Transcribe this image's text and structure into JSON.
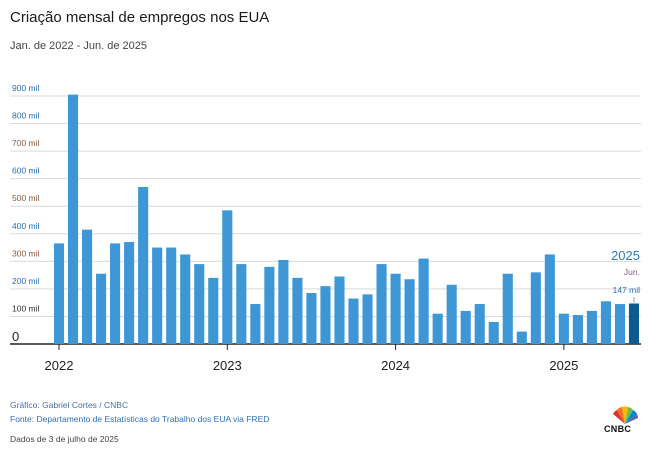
{
  "title": "Criação mensal de empregos nos EUA",
  "subtitle": "Jan. de 2022 - Jun. de 2025",
  "footer": {
    "credit": "Gráfico: Gabriel Cortes / CNBC",
    "source": "Fonte: Departamento de Estatísticas do Trabalho dos EUA via FRED",
    "date": "Dados de 3 de julho de 2025"
  },
  "logo": {
    "text": "CNBC",
    "icon": "cnbc-peacock-icon"
  },
  "colors": {
    "bar": "#3d97d4",
    "highlight": "#0d5a8c",
    "year_label": "#2a7abf",
    "grid": "#d9d9d9",
    "axis": "#222222"
  },
  "chart_data": {
    "type": "bar",
    "ylim": [
      0,
      900
    ],
    "yticks": [
      {
        "value": 900,
        "label": "900 mil",
        "color": "#2a6fb3"
      },
      {
        "value": 800,
        "label": "800 mil",
        "color": "#2a6fb3"
      },
      {
        "value": 700,
        "label": "700 mil",
        "color": "#8a5a3a"
      },
      {
        "value": 600,
        "label": "600 mil",
        "color": "#2a6fb3"
      },
      {
        "value": 500,
        "label": "500 mil",
        "color": "#8a5a3a"
      },
      {
        "value": 400,
        "label": "400 mil",
        "color": "#2a6fb3"
      },
      {
        "value": 300,
        "label": "300 mil",
        "color": "#8a5a3a"
      },
      {
        "value": 200,
        "label": "200 mil",
        "color": "#2a6fb3"
      },
      {
        "value": 100,
        "label": "100 mil",
        "color": "#333333"
      },
      {
        "value": 0,
        "label": "0",
        "color": "#222222"
      }
    ],
    "xticks": [
      {
        "index": 0,
        "label": "2022"
      },
      {
        "index": 12,
        "label": "2023"
      },
      {
        "index": 24,
        "label": "2024"
      },
      {
        "index": 36,
        "label": "2025"
      }
    ],
    "values": [
      365,
      905,
      415,
      255,
      365,
      370,
      570,
      350,
      350,
      325,
      290,
      240,
      485,
      290,
      145,
      280,
      305,
      240,
      185,
      210,
      245,
      165,
      180,
      290,
      255,
      235,
      310,
      110,
      215,
      120,
      145,
      80,
      255,
      45,
      260,
      325,
      110,
      105,
      120,
      155,
      145,
      147
    ],
    "highlight_index": 41,
    "annotation": {
      "year": "2025",
      "month": "Jun.",
      "value_label": "147 mil"
    }
  }
}
